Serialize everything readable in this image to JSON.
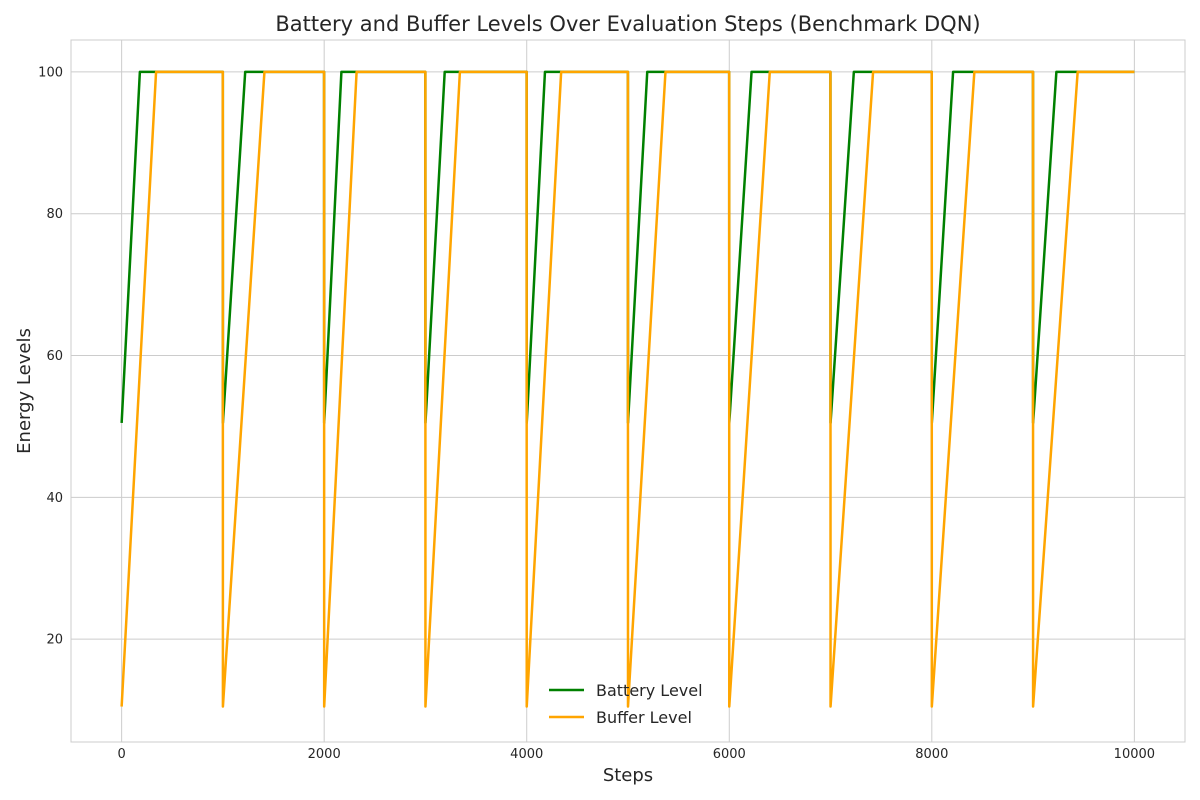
{
  "chart_data": {
    "type": "line",
    "title": "Battery and Buffer Levels Over Evaluation Steps (Benchmark DQN)",
    "xlabel": "Steps",
    "ylabel": "Energy Levels",
    "xlim": [
      -500,
      10500
    ],
    "ylim": [
      5.5,
      104.5
    ],
    "xticks": [
      0,
      2000,
      4000,
      6000,
      8000,
      10000
    ],
    "yticks": [
      20,
      40,
      60,
      80,
      100
    ],
    "grid": true,
    "legend_position": "bottom-center",
    "series": [
      {
        "name": "Battery Level",
        "color": "#008000",
        "x": [
          0,
          180,
          999,
          1000,
          1220,
          1999,
          2000,
          2170,
          2999,
          3000,
          3190,
          3999,
          4000,
          4180,
          4999,
          5000,
          5190,
          5999,
          6000,
          6220,
          6999,
          7000,
          7230,
          7999,
          8000,
          8210,
          8999,
          9000,
          9230,
          10000
        ],
        "y": [
          50.5,
          100,
          100,
          50.5,
          100,
          100,
          50.5,
          100,
          100,
          50.5,
          100,
          100,
          50.5,
          100,
          100,
          50.5,
          100,
          100,
          50.5,
          100,
          100,
          50.5,
          100,
          100,
          50.5,
          100,
          100,
          50.5,
          100,
          100
        ]
      },
      {
        "name": "Buffer Level",
        "color": "#ffa500",
        "x": [
          0,
          340,
          999,
          1000,
          1410,
          1999,
          2000,
          2320,
          2999,
          3000,
          3340,
          3999,
          4000,
          4340,
          4999,
          5000,
          5370,
          5999,
          6000,
          6400,
          6999,
          7000,
          7420,
          7999,
          8000,
          8420,
          8999,
          9000,
          9440,
          10000
        ],
        "y": [
          10.5,
          100,
          100,
          10.5,
          100,
          100,
          10.5,
          100,
          100,
          10.5,
          100,
          100,
          10.5,
          100,
          100,
          10.5,
          100,
          100,
          10.5,
          100,
          100,
          10.5,
          100,
          100,
          10.5,
          100,
          100,
          10.5,
          100,
          100
        ]
      }
    ]
  }
}
